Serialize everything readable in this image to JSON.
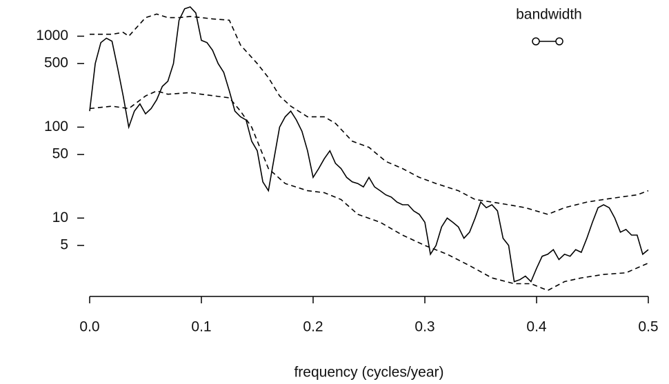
{
  "chart_data": {
    "type": "line",
    "xlabel": "frequency (cycles/year)",
    "xlim": [
      0,
      0.5
    ],
    "xticks": [
      {
        "value": 0,
        "label": "0.0"
      },
      0.1,
      0.2,
      0.3,
      0.4,
      0.5
    ],
    "ylim": [
      1.5,
      2500
    ],
    "yticks": [
      5,
      10,
      50,
      100,
      500,
      1000
    ],
    "ylog": true,
    "annotation": {
      "text": "bandwidth",
      "width": 0.021
    },
    "series": [
      {
        "style": "solid",
        "color": "#000000",
        "x": [
          0,
          0.005,
          0.01,
          0.015,
          0.02,
          0.025,
          0.03,
          0.035,
          0.04,
          0.045,
          0.05,
          0.055,
          0.06,
          0.065,
          0.07,
          0.075,
          0.08,
          0.085,
          0.09,
          0.095,
          0.1,
          0.105,
          0.11,
          0.115,
          0.12,
          0.125,
          0.13,
          0.135,
          0.14,
          0.145,
          0.15,
          0.155,
          0.16,
          0.165,
          0.17,
          0.175,
          0.18,
          0.185,
          0.19,
          0.195,
          0.2,
          0.205,
          0.21,
          0.215,
          0.22,
          0.225,
          0.23,
          0.235,
          0.24,
          0.245,
          0.25,
          0.255,
          0.26,
          0.265,
          0.27,
          0.275,
          0.28,
          0.285,
          0.29,
          0.295,
          0.3,
          0.305,
          0.31,
          0.315,
          0.32,
          0.325,
          0.33,
          0.335,
          0.34,
          0.345,
          0.35,
          0.355,
          0.36,
          0.365,
          0.37,
          0.375,
          0.38,
          0.385,
          0.39,
          0.395,
          0.4,
          0.405,
          0.41,
          0.415,
          0.42,
          0.425,
          0.43,
          0.435,
          0.44,
          0.445,
          0.45,
          0.455,
          0.46,
          0.465,
          0.47,
          0.475,
          0.48,
          0.485,
          0.49,
          0.495,
          0.5
        ],
        "values": [
          150,
          500,
          850,
          950,
          880,
          450,
          220,
          100,
          150,
          180,
          140,
          160,
          200,
          280,
          320,
          500,
          1500,
          2000,
          2100,
          1800,
          900,
          850,
          700,
          500,
          400,
          250,
          150,
          130,
          120,
          70,
          55,
          25,
          20,
          45,
          100,
          130,
          150,
          120,
          90,
          55,
          28,
          35,
          45,
          55,
          40,
          35,
          28,
          25,
          24,
          22,
          28,
          22,
          20,
          18,
          17,
          15,
          14,
          14,
          12,
          11,
          9,
          4,
          5,
          8,
          10,
          9,
          8,
          6,
          7,
          10,
          15,
          13,
          14,
          12,
          6,
          5,
          2,
          2.1,
          2.3,
          2,
          2.8,
          3.8,
          4,
          4.5,
          3.5,
          4,
          3.8,
          4.5,
          4.2,
          6,
          9,
          13,
          14,
          13,
          10,
          7,
          7.5,
          6.5,
          6.5,
          4,
          4.5
        ]
      },
      {
        "style": "dashed",
        "color": "#000000",
        "x": [
          0,
          0.02,
          0.03,
          0.035,
          0.05,
          0.06,
          0.07,
          0.08,
          0.09,
          0.1,
          0.11,
          0.125,
          0.135,
          0.15,
          0.16,
          0.17,
          0.18,
          0.195,
          0.21,
          0.22,
          0.235,
          0.25,
          0.265,
          0.28,
          0.295,
          0.31,
          0.33,
          0.345,
          0.36,
          0.375,
          0.39,
          0.41,
          0.425,
          0.445,
          0.46,
          0.475,
          0.49,
          0.5
        ],
        "values": [
          1050,
          1050,
          1100,
          1000,
          1600,
          1750,
          1600,
          1600,
          1650,
          1600,
          1550,
          1500,
          800,
          500,
          350,
          220,
          170,
          130,
          130,
          110,
          70,
          60,
          42,
          35,
          28,
          24,
          20,
          16,
          15,
          14,
          13,
          11,
          13,
          15,
          16,
          17,
          18,
          20
        ]
      },
      {
        "style": "dashed",
        "color": "#000000",
        "x": [
          0,
          0.02,
          0.035,
          0.05,
          0.06,
          0.07,
          0.09,
          0.1,
          0.125,
          0.135,
          0.145,
          0.16,
          0.175,
          0.195,
          0.21,
          0.225,
          0.24,
          0.26,
          0.28,
          0.3,
          0.32,
          0.34,
          0.36,
          0.38,
          0.395,
          0.41,
          0.425,
          0.44,
          0.46,
          0.48,
          0.5
        ],
        "values": [
          160,
          170,
          160,
          220,
          250,
          230,
          240,
          230,
          210,
          150,
          100,
          35,
          24,
          20,
          19,
          16,
          11,
          9,
          6.5,
          5,
          4,
          3,
          2.2,
          1.9,
          1.9,
          1.6,
          2,
          2.2,
          2.4,
          2.5,
          3.2
        ]
      }
    ]
  }
}
